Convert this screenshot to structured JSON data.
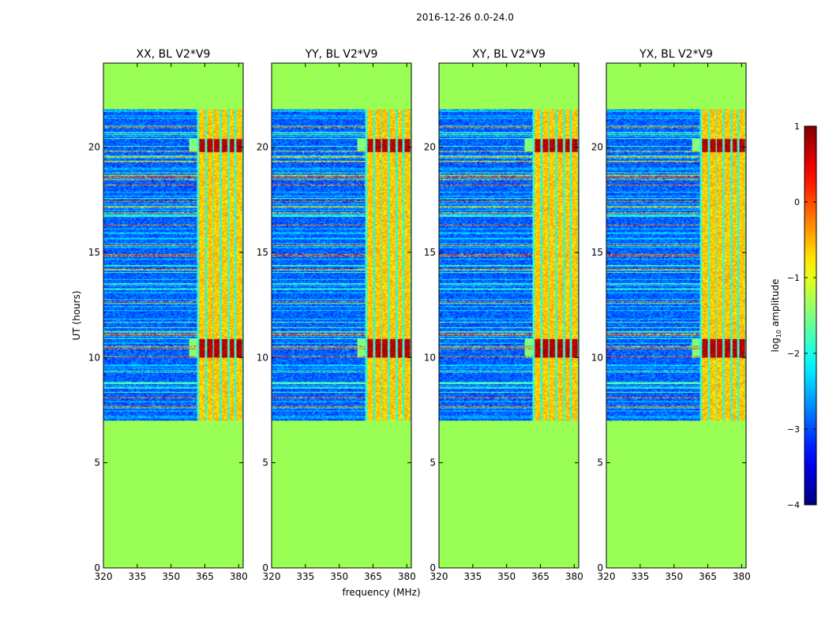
{
  "figure": {
    "suptitle": "2016-12-26 0.0-24.0",
    "xlabel": "frequency (MHz)",
    "ylabel": "UT (hours)"
  },
  "chart_data": {
    "type": "heatmap",
    "x_range": [
      320,
      382
    ],
    "y_range": [
      0,
      24
    ],
    "x_ticks": [
      320,
      335,
      350,
      365,
      380
    ],
    "y_ticks": [
      0,
      5,
      10,
      15,
      20
    ],
    "observed_ut_range": [
      7.0,
      21.8
    ],
    "fill_color": "#99ff55",
    "rfi_channels_mhz": [
      361.5,
      382
    ],
    "bright_ut_bands": [
      [
        10.0,
        10.9
      ],
      [
        19.8,
        20.4
      ]
    ],
    "panels": [
      {
        "title": "XX, BL V2*V9"
      },
      {
        "title": "YY, BL V2*V9"
      },
      {
        "title": "XY, BL V2*V9"
      },
      {
        "title": "YX, BL V2*V9"
      }
    ],
    "colorbar": {
      "label": "log10 amplitude",
      "label_main": "log",
      "label_sub": "10",
      "label_rest": " amplitude",
      "range": [
        -4,
        1
      ],
      "ticks": [
        "1",
        "0",
        "−1",
        "−2",
        "−3",
        "−4"
      ],
      "colormap": "jet"
    }
  }
}
